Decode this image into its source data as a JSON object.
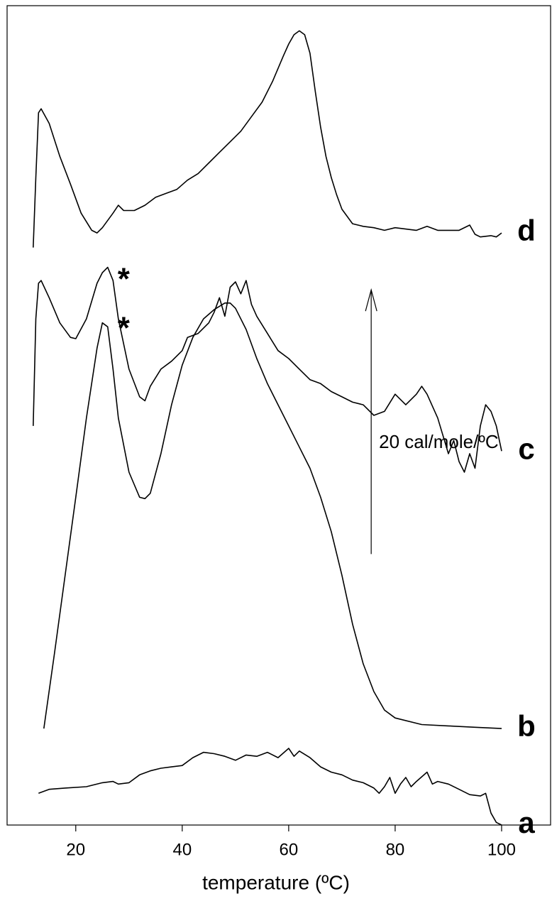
{
  "chart_data": {
    "type": "line",
    "xlabel": "temperature (ºC)",
    "xlim": [
      7.1,
      109.2
    ],
    "xticks": [
      20,
      40,
      60,
      80,
      100
    ],
    "ylim": [
      0,
      62
    ],
    "color": "#000000",
    "series": [
      {
        "name": "d",
        "x": [
          12,
          12.5,
          13,
          13.5,
          15,
          17,
          19,
          21,
          23,
          24,
          25,
          27,
          28,
          29,
          31,
          33,
          35,
          37,
          39,
          41,
          43,
          45,
          47,
          49,
          51,
          53,
          55,
          57,
          59,
          60,
          61,
          62,
          63,
          64,
          65,
          66,
          67,
          68,
          69,
          70,
          72,
          74,
          76,
          78,
          80,
          82,
          84,
          86,
          88,
          90,
          92,
          94,
          95,
          96,
          98,
          99,
          100
        ],
        "values": [
          43.7,
          49.0,
          53.9,
          54.2,
          53.1,
          50.6,
          48.5,
          46.3,
          45.0,
          44.8,
          45.2,
          46.3,
          46.9,
          46.5,
          46.5,
          46.9,
          47.5,
          47.8,
          48.1,
          48.8,
          49.3,
          50.1,
          50.9,
          51.7,
          52.5,
          53.6,
          54.7,
          56.3,
          58.2,
          59.1,
          59.8,
          60.1,
          59.8,
          58.4,
          55.5,
          52.8,
          50.6,
          49.0,
          47.7,
          46.6,
          45.5,
          45.3,
          45.2,
          45.0,
          45.2,
          45.1,
          45.0,
          45.3,
          45.0,
          45.0,
          45.0,
          45.4,
          44.7,
          44.5,
          44.6,
          44.5,
          44.8
        ]
      },
      {
        "name": "c",
        "x": [
          12,
          12.5,
          13,
          13.5,
          15,
          17,
          19,
          20,
          22,
          24,
          25,
          26,
          27,
          28,
          30,
          32,
          33,
          34,
          36,
          38,
          40,
          41,
          43,
          45,
          46,
          47,
          48,
          49,
          50,
          51,
          52,
          53,
          54,
          56,
          58,
          60,
          62,
          64,
          66,
          68,
          70,
          72,
          74,
          76,
          78,
          80,
          82,
          84,
          85,
          86,
          88,
          90,
          91,
          92,
          93,
          94,
          95,
          96,
          97,
          98,
          99,
          100
        ],
        "values": [
          30.2,
          38.3,
          41.0,
          41.2,
          39.9,
          38.0,
          36.9,
          36.8,
          38.3,
          41.0,
          41.8,
          42.2,
          41.2,
          38.3,
          34.5,
          32.4,
          32.1,
          33.2,
          34.5,
          35.1,
          35.9,
          36.9,
          37.2,
          38.0,
          38.8,
          39.9,
          38.5,
          40.7,
          41.1,
          40.2,
          41.2,
          39.4,
          38.5,
          37.2,
          35.9,
          35.3,
          34.5,
          33.7,
          33.4,
          32.8,
          32.4,
          32.0,
          31.8,
          31.0,
          31.3,
          32.6,
          31.8,
          32.6,
          33.2,
          32.6,
          30.8,
          28.1,
          29.1,
          27.5,
          26.7,
          28.1,
          27.0,
          30.2,
          31.8,
          31.3,
          30.2,
          28.3
        ]
      },
      {
        "name": "b",
        "x": [
          14,
          16,
          18,
          20,
          22,
          24,
          25,
          26,
          27,
          28,
          30,
          32,
          33,
          34,
          36,
          38,
          40,
          42,
          44,
          46,
          48,
          49,
          50,
          52,
          54,
          56,
          58,
          60,
          62,
          64,
          66,
          68,
          70,
          72,
          74,
          76,
          78,
          80,
          85,
          90,
          95,
          100
        ],
        "values": [
          7.3,
          13.0,
          18.9,
          24.8,
          30.8,
          36.1,
          38.0,
          37.7,
          34.5,
          30.8,
          26.7,
          24.8,
          24.7,
          25.1,
          28.1,
          31.8,
          34.8,
          36.9,
          38.3,
          39.0,
          39.5,
          39.5,
          39.1,
          37.5,
          35.3,
          33.4,
          31.8,
          30.2,
          28.6,
          27.0,
          24.8,
          22.2,
          18.9,
          15.2,
          12.2,
          10.1,
          8.7,
          8.1,
          7.6,
          7.5,
          7.4,
          7.3
        ]
      },
      {
        "name": "a",
        "x": [
          13,
          15,
          18,
          22,
          25,
          27,
          28,
          30,
          32,
          34,
          36,
          38,
          40,
          42,
          44,
          46,
          48,
          50,
          52,
          54,
          56,
          58,
          60,
          61,
          62,
          64,
          66,
          68,
          70,
          72,
          74,
          76,
          77,
          78,
          79,
          80,
          81,
          82,
          83,
          84,
          86,
          87,
          88,
          90,
          92,
          94,
          96,
          97,
          98,
          99,
          100
        ],
        "values": [
          2.4,
          2.7,
          2.8,
          2.9,
          3.2,
          3.3,
          3.1,
          3.2,
          3.8,
          4.1,
          4.3,
          4.4,
          4.5,
          5.1,
          5.5,
          5.4,
          5.2,
          4.9,
          5.3,
          5.2,
          5.5,
          5.1,
          5.8,
          5.2,
          5.6,
          5.1,
          4.4,
          4.0,
          3.8,
          3.4,
          3.2,
          2.8,
          2.4,
          2.9,
          3.6,
          2.4,
          3.1,
          3.6,
          2.9,
          3.3,
          4.0,
          3.1,
          3.3,
          3.1,
          2.7,
          2.3,
          2.2,
          2.4,
          0.9,
          0.2,
          0.0
        ]
      }
    ],
    "annotations": [
      {
        "text": "*",
        "x": 29,
        "y": 41.7
      },
      {
        "text": "*",
        "x": 29,
        "y": 38.0
      }
    ],
    "scale_bar": {
      "label": "20 cal/mole/ºC",
      "value": 20,
      "x": 75.5,
      "y0": 20.5
    }
  }
}
